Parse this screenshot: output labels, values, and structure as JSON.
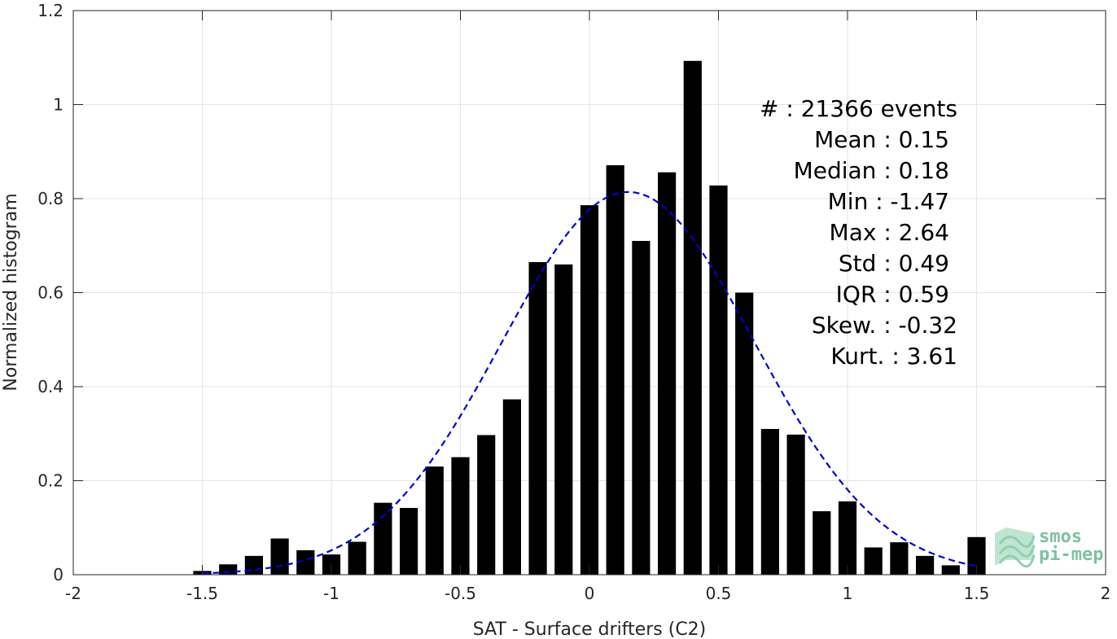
{
  "chart_data": {
    "type": "bar",
    "xlabel": "SAT - Surface drifters (C2)",
    "ylabel": "Normalized histogram",
    "xlim": [
      -2,
      2
    ],
    "ylim": [
      0,
      1.2
    ],
    "xticks": [
      -2,
      -1.5,
      -1,
      -0.5,
      0,
      0.5,
      1,
      1.5,
      2
    ],
    "xtick_labels": [
      "-2",
      "-1.5",
      "-1",
      "-0.5",
      "0",
      "0.5",
      "1",
      "1.5",
      "2"
    ],
    "yticks": [
      0,
      0.2,
      0.4,
      0.6,
      0.8,
      1,
      1.2
    ],
    "ytick_labels": [
      "0",
      "0.2",
      "0.4",
      "0.6",
      "0.8",
      "1",
      "1.2"
    ],
    "grid": true,
    "bar_color": "#000000",
    "bar_width": 0.07,
    "bin_centers": [
      -1.5,
      -1.4,
      -1.3,
      -1.2,
      -1.1,
      -1.0,
      -0.9,
      -0.8,
      -0.7,
      -0.6,
      -0.5,
      -0.4,
      -0.3,
      -0.2,
      -0.1,
      0.0,
      0.1,
      0.2,
      0.3,
      0.4,
      0.5,
      0.6,
      0.7,
      0.8,
      0.9,
      1.0,
      1.1,
      1.2,
      1.3,
      1.4,
      1.5
    ],
    "values": [
      0.008,
      0.022,
      0.04,
      0.077,
      0.052,
      0.043,
      0.07,
      0.153,
      0.142,
      0.23,
      0.25,
      0.297,
      0.373,
      0.665,
      0.66,
      0.786,
      0.871,
      0.71,
      0.856,
      1.093,
      0.828,
      0.6,
      0.31,
      0.298,
      0.135,
      0.156,
      0.058,
      0.069,
      0.04,
      0.02,
      0.08
    ],
    "fit_curve": {
      "style": "dashed",
      "color": "#0000d9",
      "mean": 0.15,
      "std": 0.49,
      "x_range": [
        -1.5,
        1.5
      ]
    },
    "annotations": [
      "#  : 21366 events",
      "Mean : 0.15",
      "Median : 0.18",
      "Min : -1.47",
      "Max : 2.64",
      "Std : 0.49",
      "IQR : 0.59",
      "Skew. : -0.32",
      "Kurt. : 3.61"
    ]
  },
  "logo": {
    "line1": "smos",
    "line2": "pi-mep",
    "color": "#7cc3a0"
  }
}
